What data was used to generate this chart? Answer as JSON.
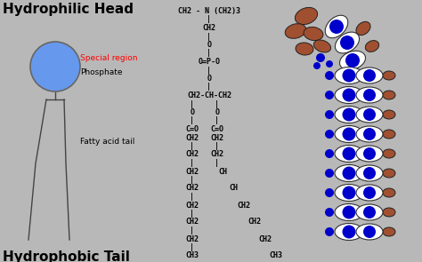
{
  "bg_color": "#b8b8b8",
  "title_text": "Hydrophilic Head",
  "title_fontsize": 11,
  "hydrophobic_text": "Hydrophobic Tail",
  "hydrophobic_fontsize": 11,
  "special_region_text": "Special region",
  "phosphate_text": "Phosphate",
  "fatty_acid_text": "Fatty acid tail",
  "head_circle_color": "#6699ee",
  "head_circle_edge": "#666666",
  "brown_color": "#a05030",
  "blue_color": "#0000cc",
  "white_color": "#ffffff",
  "figsize": [
    4.74,
    2.95
  ],
  "dpi": 100
}
